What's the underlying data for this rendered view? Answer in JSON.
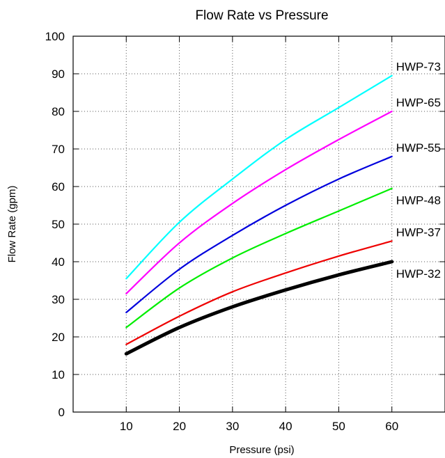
{
  "chart_data": {
    "type": "line",
    "title": "Flow Rate vs Pressure",
    "xlabel": "Pressure (psi)",
    "ylabel": "Flow Rate (gpm)",
    "xlim": [
      0,
      70
    ],
    "ylim": [
      0,
      100
    ],
    "x_ticks": [
      10,
      20,
      30,
      40,
      50,
      60
    ],
    "y_ticks": [
      0,
      10,
      20,
      30,
      40,
      50,
      60,
      70,
      80,
      90,
      100
    ],
    "grid": true,
    "legend": "labels at line ends (right)",
    "x": [
      10,
      20,
      30,
      40,
      50,
      60
    ],
    "series": [
      {
        "name": "HWP-73",
        "color": "#00ffff",
        "values": [
          35.5,
          50.5,
          62.0,
          72.5,
          81.0,
          89.5
        ]
      },
      {
        "name": "HWP-65",
        "color": "#ff00ff",
        "values": [
          31.5,
          45.0,
          55.5,
          64.5,
          72.5,
          80.0
        ]
      },
      {
        "name": "HWP-55",
        "color": "#0000dd",
        "values": [
          26.5,
          38.0,
          47.0,
          55.0,
          62.0,
          68.0
        ]
      },
      {
        "name": "HWP-48",
        "color": "#00ee00",
        "values": [
          22.5,
          33.0,
          41.0,
          47.5,
          53.5,
          59.5
        ]
      },
      {
        "name": "HWP-37",
        "color": "#ee0000",
        "values": [
          18.0,
          25.5,
          32.0,
          37.0,
          41.5,
          45.5
        ]
      },
      {
        "name": "HWP-32",
        "color": "#000000",
        "values": [
          15.5,
          22.5,
          28.0,
          32.5,
          36.5,
          40.0
        ]
      }
    ]
  }
}
